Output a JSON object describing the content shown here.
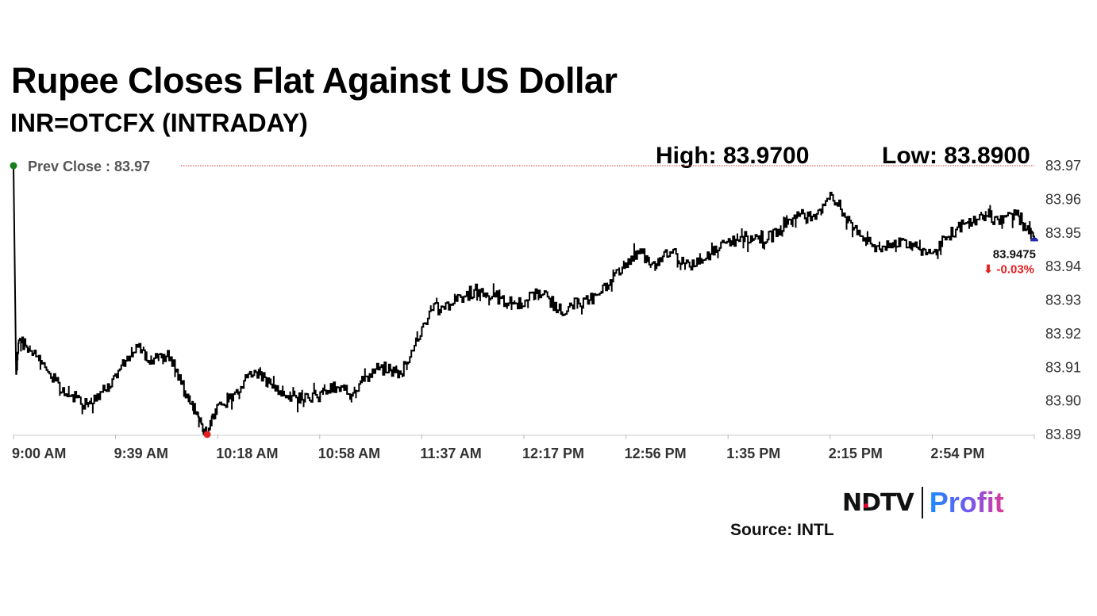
{
  "title": "Rupee Closes Flat Against US Dollar",
  "subtitle": "INR=OTCFX (INTRADAY)",
  "high_label": "High: 83.9700",
  "low_label": "Low: 83.8900",
  "source": "Source: INTL",
  "brand": {
    "ndtv": "NDTV",
    "profit": "Profit"
  },
  "colors": {
    "line": "#000000",
    "prev_close_line": "#c0392b",
    "high_marker": "#1a7f1a",
    "low_marker": "#e41e1e",
    "last_marker": "#1f2aa8",
    "change_negative": "#e41e1e"
  },
  "chart_data": {
    "type": "line",
    "title": "Rupee Closes Flat Against US Dollar",
    "subtitle": "INR=OTCFX (INTRADAY)",
    "x_tick_labels": [
      "9:00 AM",
      "9:39 AM",
      "10:18 AM",
      "10:58 AM",
      "11:37 AM",
      "12:17 PM",
      "12:56 PM",
      "1:35 PM",
      "2:15 PM",
      "2:54 PM"
    ],
    "y_ticks": [
      83.89,
      83.9,
      83.91,
      83.92,
      83.93,
      83.94,
      83.95,
      83.96,
      83.97
    ],
    "y_tick_labels": [
      "83.89",
      "83.90",
      "83.91",
      "83.92",
      "83.93",
      "83.94",
      "83.95",
      "83.96",
      "83.97"
    ],
    "ylim": [
      83.89,
      83.97
    ],
    "x_range_minutes": [
      0,
      390
    ],
    "prev_close": {
      "label": "Prev Close : 83.97",
      "value": 83.97
    },
    "last": {
      "value_label": "83.9475",
      "value": 83.9475,
      "change_label": "⬇ -0.03%"
    },
    "high": 83.97,
    "low": 83.89,
    "low_minute": 74,
    "series": [
      {
        "x": [
          0,
          1,
          2,
          5,
          8,
          12,
          16,
          20,
          24,
          28,
          32,
          36,
          40,
          44,
          48,
          52,
          56,
          60,
          64,
          68,
          70,
          72,
          74,
          76,
          80,
          84,
          88,
          92,
          96,
          100,
          104,
          108,
          112,
          116,
          120,
          124,
          128,
          132,
          136,
          140,
          144,
          148,
          152,
          156,
          160,
          164,
          168,
          172,
          176,
          180,
          184,
          188,
          192,
          196,
          200,
          204,
          208,
          212,
          216,
          220,
          224,
          228,
          232,
          236,
          240,
          244,
          248,
          252,
          256,
          260,
          264,
          268,
          272,
          276,
          280,
          284,
          288,
          292,
          296,
          300,
          304,
          308,
          312,
          316,
          320,
          324,
          328,
          332,
          336,
          340,
          344,
          348,
          352,
          356,
          360,
          364,
          368,
          372,
          376,
          380,
          384,
          387,
          390
        ],
        "y": [
          83.97,
          83.908,
          83.918,
          83.916,
          83.915,
          83.91,
          83.906,
          83.902,
          83.901,
          83.899,
          83.902,
          83.905,
          83.909,
          83.912,
          83.917,
          83.911,
          83.914,
          83.913,
          83.905,
          83.899,
          83.896,
          83.893,
          83.89,
          83.896,
          83.899,
          83.902,
          83.906,
          83.909,
          83.907,
          83.903,
          83.901,
          83.901,
          83.902,
          83.901,
          83.903,
          83.904,
          83.902,
          83.905,
          83.908,
          83.91,
          83.909,
          83.908,
          83.915,
          83.922,
          83.927,
          83.928,
          83.929,
          83.931,
          83.933,
          83.932,
          83.931,
          83.929,
          83.929,
          83.93,
          83.932,
          83.931,
          83.927,
          83.928,
          83.929,
          83.93,
          83.932,
          83.936,
          83.938,
          83.943,
          83.944,
          83.941,
          83.943,
          83.945,
          83.941,
          83.94,
          83.942,
          83.946,
          83.947,
          83.948,
          83.949,
          83.949,
          83.948,
          83.951,
          83.954,
          83.955,
          83.955,
          83.957,
          83.962,
          83.957,
          83.953,
          83.949,
          83.946,
          83.946,
          83.947,
          83.948,
          83.946,
          83.945,
          83.945,
          83.948,
          83.951,
          83.953,
          83.954,
          83.955,
          83.954,
          83.956,
          83.955,
          83.951,
          83.9475
        ]
      }
    ]
  }
}
